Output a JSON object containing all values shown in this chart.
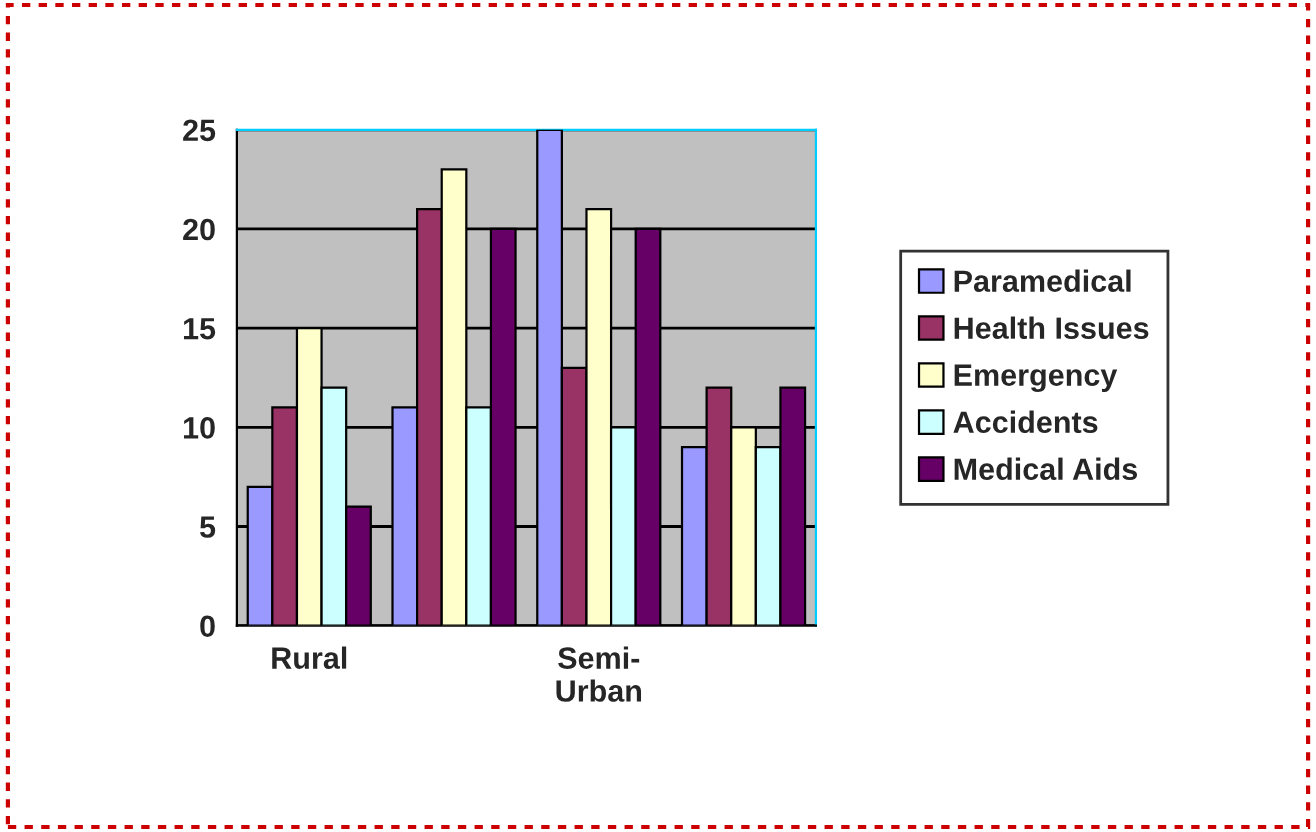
{
  "chart_data": {
    "type": "bar",
    "categories": [
      "Rural",
      null,
      "Semi-\nUrban",
      null
    ],
    "series": [
      {
        "name": "Paramedical",
        "color": "#9999ff",
        "values": [
          7,
          11,
          25,
          9
        ]
      },
      {
        "name": "Health Issues",
        "color": "#993366",
        "values": [
          11,
          21,
          13,
          12
        ]
      },
      {
        "name": "Emergency",
        "color": "#ffffcc",
        "values": [
          15,
          23,
          21,
          10
        ]
      },
      {
        "name": "Accidents",
        "color": "#ccffff",
        "values": [
          12,
          11,
          10,
          9
        ]
      },
      {
        "name": "Medical Aids",
        "color": "#660066",
        "values": [
          6,
          20,
          20,
          12
        ]
      }
    ],
    "ylim": [
      0,
      25
    ],
    "yticks": [
      0,
      5,
      10,
      15,
      20,
      25
    ],
    "grid": "y",
    "legend": "right"
  }
}
